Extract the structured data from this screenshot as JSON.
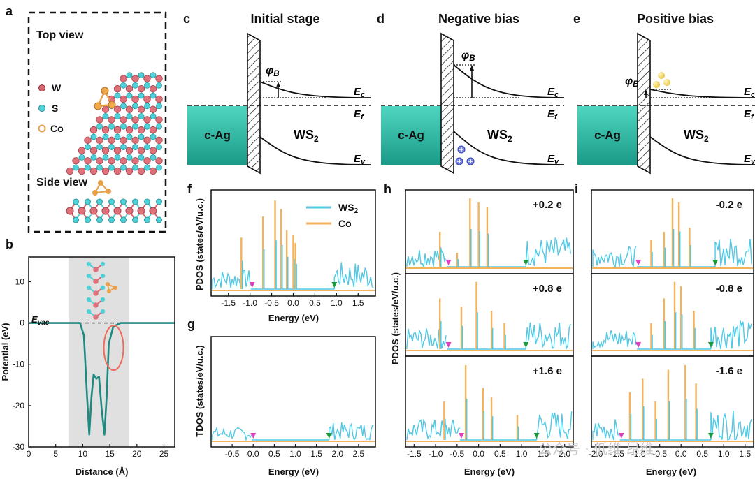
{
  "panels": {
    "a": {
      "letter": "a",
      "top_view": "Top view",
      "side_view": "Side view",
      "legend": [
        {
          "name": "W",
          "color": "#d9646f"
        },
        {
          "name": "S",
          "color": "#4fd1d9"
        },
        {
          "name": "Co",
          "color": "#e8a04a"
        }
      ]
    },
    "b": {
      "letter": "b",
      "evac": "E",
      "evac_sub": "vac"
    },
    "c": {
      "letter": "c",
      "title": "Initial stage"
    },
    "d": {
      "letter": "d",
      "title": "Negative bias"
    },
    "e": {
      "letter": "e",
      "title": "Positive bias"
    },
    "f": {
      "letter": "f"
    },
    "g": {
      "letter": "g"
    },
    "h": {
      "letter": "h",
      "labels": [
        "+0.2 e",
        "+0.8 e",
        "+1.6 e"
      ]
    },
    "i": {
      "letter": "i",
      "labels": [
        "-0.2 e",
        "-0.8 e",
        "-1.6 e"
      ]
    }
  },
  "band": {
    "metal": "c-Ag",
    "semi": "WS",
    "semi_sub": "2",
    "ec": "E",
    "ec_sub": "c",
    "ef": "E",
    "ef_sub": "f",
    "ev": "E",
    "ev_sub": "v",
    "phi": "φ",
    "phi_sub": "B"
  },
  "colors": {
    "ws2": "#4fc9e6",
    "co": "#f2b35c",
    "teal": "#1f8a80",
    "magenta": "#e040c0",
    "green": "#1a9a3a",
    "pink": "#f06a5a"
  },
  "watermark": "公众号 · 低维 昂维",
  "chart_data": [
    {
      "panel": "b",
      "type": "line",
      "xlabel": "Distance (Å)",
      "ylabel": "Potential (eV)",
      "xlim": [
        0,
        27
      ],
      "ylim": [
        -30,
        16
      ],
      "xticks": [
        0,
        5,
        10,
        15,
        20,
        25
      ],
      "yticks": [
        -30,
        -20,
        -10,
        0,
        10
      ],
      "shaded_region": [
        7.5,
        18.5
      ],
      "x": [
        0,
        7.5,
        9.5,
        10.2,
        10.8,
        11.2,
        11.6,
        12.0,
        12.5,
        13.0,
        13.5,
        14.0,
        14.4,
        14.8,
        15.2,
        15.6,
        16.2,
        17.0,
        27
      ],
      "y": [
        0,
        0,
        0,
        -3,
        -18,
        -27,
        -18,
        -12.5,
        -13.5,
        -13,
        -21,
        -27,
        -18,
        -5,
        -3,
        -1,
        -0.5,
        0,
        0
      ],
      "annotation": "circled region near 15.8 Å"
    },
    {
      "panel": "f",
      "type": "line",
      "xlabel": "Energy (eV)",
      "ylabel": "PDOS (states/eV/u.c.)",
      "xlim": [
        -1.9,
        1.9
      ],
      "xticks": [
        -1.5,
        -1.0,
        -0.5,
        0.0,
        0.5,
        1.0,
        1.5
      ],
      "series": [
        {
          "name": "WS2",
          "color": "#4fc9e6"
        },
        {
          "name": "Co",
          "color": "#f2b35c"
        }
      ],
      "peaks": [
        {
          "x": -1.2,
          "h": 0.55
        },
        {
          "x": -0.7,
          "h": 0.75
        },
        {
          "x": -0.42,
          "h": 0.9
        },
        {
          "x": -0.28,
          "h": 0.82
        },
        {
          "x": -0.15,
          "h": 0.62
        },
        {
          "x": 0.0,
          "h": 0.58
        },
        {
          "x": 0.05,
          "h": 0.5
        }
      ],
      "vbm_marker": -0.95,
      "cbm_marker": 0.95
    },
    {
      "panel": "g",
      "type": "line",
      "xlabel": "Energy (eV)",
      "ylabel": "TDOS (states/eV/u.c.)",
      "xlim": [
        -1.0,
        2.9
      ],
      "xticks": [
        -0.5,
        0.0,
        0.5,
        1.0,
        1.5,
        2.0,
        2.5
      ],
      "vbm_marker": 0.0,
      "cbm_marker": 1.8
    },
    {
      "panel": "h",
      "type": "line",
      "xlabel": "Energy (eV)",
      "ylabel": "PDOS (states/eV/u.c.)",
      "xlim": [
        -1.7,
        2.2
      ],
      "xticks": [
        -1.5,
        -1.0,
        -0.5,
        0.0,
        0.5,
        1.0,
        1.5,
        2.0
      ],
      "vbm_markers": [
        -0.7,
        -0.7,
        -0.4
      ],
      "cbm_markers": [
        1.1,
        1.1,
        1.35
      ]
    },
    {
      "panel": "i",
      "type": "line",
      "xlabel": "Energy (eV)",
      "xlim": [
        -2.1,
        1.7
      ],
      "xticks": [
        -2.0,
        -1.5,
        -1.0,
        -0.5,
        0.0,
        0.5,
        1.0,
        1.5
      ],
      "vbm_markers": [
        -1.0,
        -1.0,
        -1.4
      ],
      "cbm_markers": [
        0.8,
        0.7,
        0.7
      ]
    }
  ]
}
